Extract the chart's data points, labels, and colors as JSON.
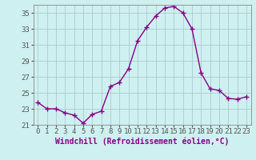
{
  "x": [
    0,
    1,
    2,
    3,
    4,
    5,
    6,
    7,
    8,
    9,
    10,
    11,
    12,
    13,
    14,
    15,
    16,
    17,
    18,
    19,
    20,
    21,
    22,
    23
  ],
  "y": [
    23.8,
    23.0,
    23.0,
    22.5,
    22.2,
    21.2,
    22.3,
    22.7,
    25.8,
    26.3,
    28.0,
    31.5,
    33.2,
    34.6,
    35.6,
    35.8,
    35.0,
    33.0,
    27.5,
    25.5,
    25.3,
    24.3,
    24.2,
    24.5
  ],
  "line_color": "#880088",
  "marker": "+",
  "marker_size": 4,
  "bg_color": "#cff0f0",
  "grid_color": "#aacccc",
  "xlabel": "Windchill (Refroidissement éolien,°C)",
  "xlabel_fontsize": 7,
  "tick_fontsize": 6.5,
  "ylim": [
    21,
    36
  ],
  "ytick_min": 21,
  "ytick_max": 35,
  "ytick_step": 2,
  "xticks": [
    0,
    1,
    2,
    3,
    4,
    5,
    6,
    7,
    8,
    9,
    10,
    11,
    12,
    13,
    14,
    15,
    16,
    17,
    18,
    19,
    20,
    21,
    22,
    23
  ],
  "line_width": 1.0,
  "marker_color": "#880088",
  "spine_color": "#888888",
  "tick_color": "#555555",
  "title": ""
}
